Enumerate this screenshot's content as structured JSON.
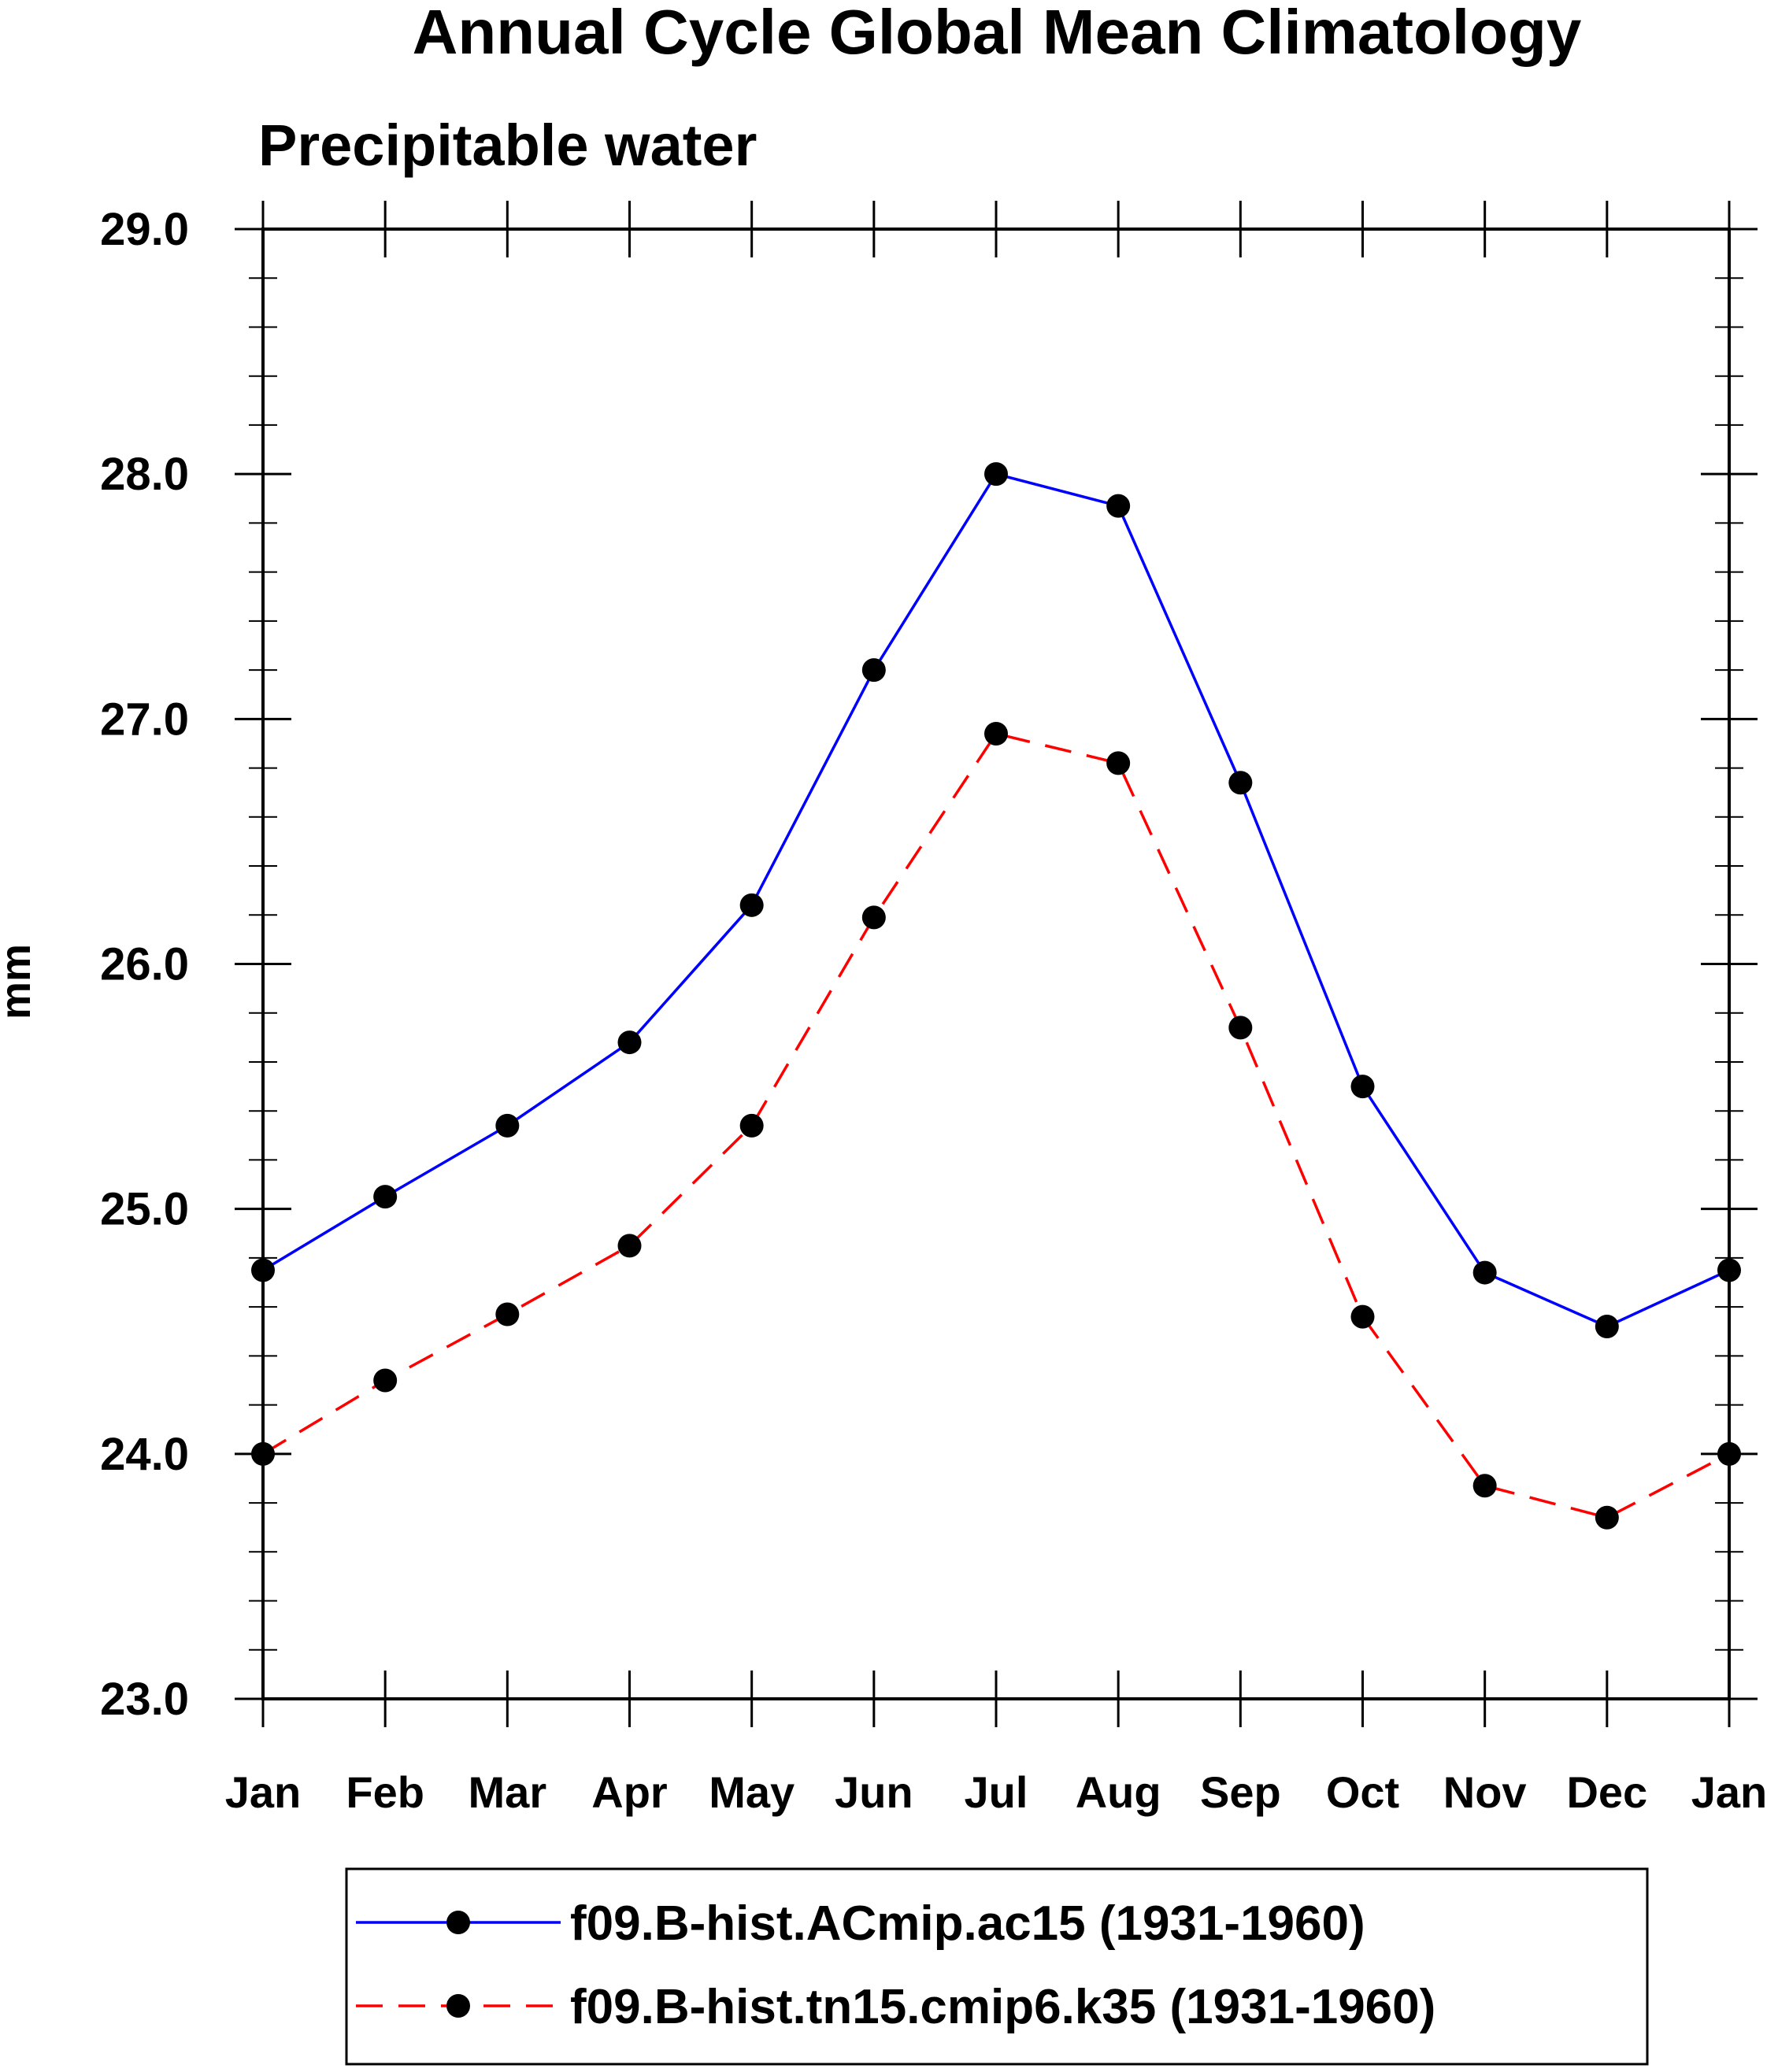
{
  "chart_data": {
    "type": "line",
    "title": "Annual Cycle Global Mean Climatology",
    "subtitle": "Precipitable water",
    "xlabel": "",
    "ylabel": "mm",
    "categories": [
      "Jan",
      "Feb",
      "Mar",
      "Apr",
      "May",
      "Jun",
      "Jul",
      "Aug",
      "Sep",
      "Oct",
      "Nov",
      "Dec",
      "Jan"
    ],
    "ylim": [
      23.0,
      29.0
    ],
    "yticks": [
      23.0,
      24.0,
      25.0,
      26.0,
      27.0,
      28.0,
      29.0
    ],
    "ytick_labels": [
      "23.0",
      "24.0",
      "25.0",
      "26.0",
      "27.0",
      "28.0",
      "29.0"
    ],
    "grid": false,
    "legend_position": "bottom",
    "series": [
      {
        "name": "f09.B-hist.ACmip.ac15 (1931-1960)",
        "color": "#0000ff",
        "dash": "solid",
        "values": [
          24.75,
          25.05,
          25.34,
          25.68,
          26.24,
          27.2,
          28.0,
          27.87,
          26.74,
          25.5,
          24.74,
          24.52,
          24.75
        ]
      },
      {
        "name": "f09.B-hist.tn15.cmip6.k35 (1931-1960)",
        "color": "#ff0000",
        "dash": "dashed",
        "values": [
          24.0,
          24.3,
          24.57,
          24.85,
          25.34,
          26.19,
          26.94,
          26.82,
          25.74,
          24.56,
          23.87,
          23.74,
          24.0
        ]
      }
    ]
  }
}
